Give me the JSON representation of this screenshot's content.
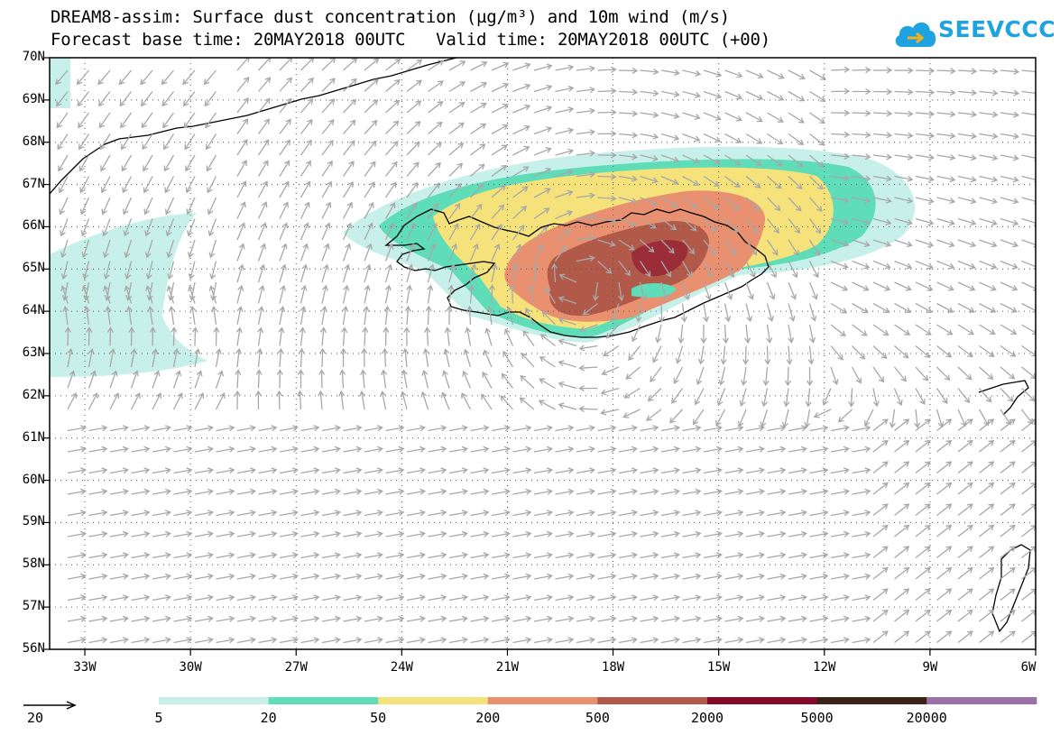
{
  "title": {
    "line1": "DREAM8-assim: Surface dust concentration (µg/m³) and 10m wind (m/s)",
    "line2": "Forecast base time: 20MAY2018 00UTC   Valid time: 20MAY2018 00UTC (+00)"
  },
  "logo": {
    "text": "SEEVCCC",
    "color": "#1fa3e0"
  },
  "map": {
    "lon_range": [
      -34,
      -6
    ],
    "lat_range": [
      56,
      70
    ],
    "lat_labels": [
      "70N",
      "69N",
      "68N",
      "67N",
      "66N",
      "65N",
      "64N",
      "63N",
      "62N",
      "61N",
      "60N",
      "59N",
      "58N",
      "57N",
      "56N"
    ],
    "lat_values": [
      70,
      69,
      68,
      67,
      66,
      65,
      64,
      63,
      62,
      61,
      60,
      59,
      58,
      57,
      56
    ],
    "lon_labels": [
      "33W",
      "30W",
      "27W",
      "24W",
      "21W",
      "18W",
      "15W",
      "12W",
      "9W",
      "6W"
    ],
    "lon_values": [
      -33,
      -30,
      -27,
      -24,
      -21,
      -18,
      -15,
      -12,
      -9,
      -6
    ],
    "wind_arrow_color": "#a8a8a8"
  },
  "legend": {
    "wind_reference": "20",
    "values": [
      "5",
      "20",
      "50",
      "200",
      "500",
      "2000",
      "5000",
      "20000"
    ],
    "colors": [
      "#c8f0ea",
      "#5fdcb8",
      "#f5e27a",
      "#e89070",
      "#b25a4a",
      "#860a2a",
      "#3a2214",
      "#9a70a6"
    ]
  }
}
